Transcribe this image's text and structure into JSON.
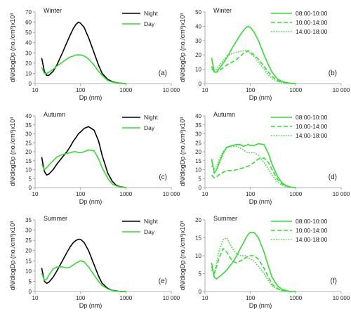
{
  "colors": {
    "night": "#000000",
    "day": "#33dd33",
    "green": "#33dd33",
    "axis": "#9a9a9a",
    "text": "#222222"
  },
  "x_axis_label": "Dp (nm)",
  "y_axis_label": "dN/dlogDp (no./cm³)x10³",
  "x_ticks": [
    10,
    100,
    1000,
    10000
  ],
  "x_tick_labels": [
    "10",
    "100",
    "1000",
    "10 000"
  ],
  "chart_data": [
    {
      "type": "line",
      "panel_label": "(a)",
      "title": "Winter",
      "xlabel": "Dp (nm)",
      "ylabel": "dN/dlogDp (no./cm³)x10³",
      "xscale": "log",
      "xlim": [
        10,
        10000
      ],
      "ylim": [
        0,
        70
      ],
      "yticks": [
        0,
        10,
        20,
        30,
        40,
        50,
        60,
        70
      ],
      "legend": "top-right",
      "x": [
        14,
        16,
        18,
        20,
        25,
        30,
        40,
        50,
        60,
        70,
        80,
        90,
        100,
        120,
        150,
        200,
        250,
        300,
        400,
        500,
        600,
        700,
        800,
        1000
      ],
      "series": [
        {
          "name": "Night",
          "style": "solid",
          "color": "#000000",
          "values": [
            25,
            12,
            8,
            8,
            12,
            18,
            30,
            40,
            48,
            54,
            58,
            60,
            59,
            55,
            45,
            30,
            18,
            10,
            4,
            2,
            1,
            0.5,
            0.3,
            0
          ]
        },
        {
          "name": "Day",
          "style": "solid",
          "color": "#33dd33",
          "values": [
            16,
            10,
            10,
            11,
            14,
            17,
            21,
            24,
            26,
            27,
            28,
            28,
            28,
            27,
            24,
            18,
            12,
            8,
            3,
            1.5,
            0.8,
            0.4,
            0.2,
            0
          ]
        }
      ]
    },
    {
      "type": "line",
      "panel_label": "(b)",
      "title": "Winter",
      "xlabel": "Dp (nm)",
      "ylabel": "dN/dlogDp (no./cm³)x10³",
      "xscale": "log",
      "xlim": [
        10,
        10000
      ],
      "ylim": [
        0,
        50
      ],
      "yticks": [
        0,
        10,
        20,
        30,
        40,
        50
      ],
      "legend": "top-right",
      "x": [
        14,
        16,
        18,
        20,
        25,
        30,
        40,
        50,
        60,
        70,
        80,
        90,
        100,
        120,
        150,
        200,
        250,
        300,
        400,
        500,
        600,
        700,
        800,
        1000
      ],
      "series": [
        {
          "name": "08:00-10:00",
          "style": "solid",
          "color": "#33dd33",
          "values": [
            18,
            8,
            8,
            10,
            14,
            18,
            25,
            30,
            34,
            37,
            39,
            40,
            39,
            36,
            30,
            20,
            13,
            8,
            3,
            1.5,
            0.8,
            0.4,
            0.2,
            0
          ]
        },
        {
          "name": "10:00-14:00",
          "style": "dashed",
          "color": "#33dd33",
          "values": [
            12,
            8,
            8,
            9,
            11,
            13,
            15,
            17,
            19,
            21,
            22,
            23,
            22,
            20,
            17,
            12,
            8,
            5,
            2,
            1,
            0.5,
            0.3,
            0.1,
            0
          ]
        },
        {
          "name": "14:00-18:00",
          "style": "dotted",
          "color": "#33dd33",
          "values": [
            10,
            9,
            10,
            12,
            16,
            19,
            21,
            22,
            22.5,
            23,
            23,
            22,
            21,
            19,
            15,
            10,
            6,
            3.5,
            1.5,
            0.7,
            0.4,
            0.2,
            0.1,
            0
          ]
        }
      ]
    },
    {
      "type": "line",
      "panel_label": "(c)",
      "title": "Autumn",
      "xlabel": "Dp (nm)",
      "ylabel": "dN/dlogDp (no./cm³)x10³",
      "xscale": "log",
      "xlim": [
        10,
        10000
      ],
      "ylim": [
        0,
        40
      ],
      "yticks": [
        0,
        5,
        10,
        15,
        20,
        25,
        30,
        35,
        40
      ],
      "legend": "top-right",
      "x": [
        14,
        16,
        18,
        20,
        25,
        30,
        40,
        50,
        60,
        70,
        80,
        90,
        100,
        120,
        150,
        200,
        250,
        300,
        400,
        500,
        600,
        700,
        800,
        1000
      ],
      "series": [
        {
          "name": "Night",
          "style": "solid",
          "color": "#000000",
          "values": [
            17,
            9,
            7,
            7.5,
            10,
            13,
            17,
            20,
            23,
            26,
            28,
            30,
            31,
            33,
            34,
            32,
            26,
            18,
            8,
            3.5,
            1.5,
            0.7,
            0.3,
            0
          ]
        },
        {
          "name": "Day",
          "style": "solid",
          "color": "#33dd33",
          "values": [
            13,
            10,
            11,
            12.5,
            15,
            17,
            18.5,
            19,
            19.5,
            20,
            20,
            19.5,
            19.5,
            20,
            21,
            20.5,
            16,
            11,
            5,
            2,
            1,
            0.5,
            0.2,
            0
          ]
        }
      ]
    },
    {
      "type": "line",
      "panel_label": "(d)",
      "title": "Autumn",
      "xlabel": "Dp (nm)",
      "ylabel": "dN/dlogDp (no./cm³)x10³",
      "xscale": "log",
      "xlim": [
        10,
        10000
      ],
      "ylim": [
        0,
        40
      ],
      "yticks": [
        0,
        5,
        10,
        15,
        20,
        25,
        30,
        35,
        40
      ],
      "legend": "top-right",
      "x": [
        14,
        16,
        18,
        20,
        25,
        30,
        40,
        50,
        60,
        70,
        80,
        90,
        100,
        120,
        150,
        200,
        250,
        300,
        400,
        500,
        600,
        700,
        800,
        1000
      ],
      "series": [
        {
          "name": "08:00-10:00",
          "style": "solid",
          "color": "#33dd33",
          "values": [
            16,
            8,
            10,
            13,
            19,
            22.5,
            23.5,
            24,
            24,
            23,
            23.5,
            24,
            23.5,
            23.5,
            24.5,
            24,
            19,
            13,
            6,
            2.5,
            1.2,
            0.5,
            0.2,
            0
          ]
        },
        {
          "name": "10:00-14:00",
          "style": "dashed",
          "color": "#33dd33",
          "values": [
            7,
            5.5,
            6,
            7,
            8.5,
            9.5,
            9.5,
            10,
            10.5,
            11,
            11.5,
            12,
            12.5,
            14,
            16,
            16.5,
            14,
            10,
            4.5,
            2,
            1,
            0.4,
            0.2,
            0
          ]
        },
        {
          "name": "14:00-18:00",
          "style": "dotted",
          "color": "#33dd33",
          "values": [
            12,
            10,
            12,
            15,
            20,
            22.5,
            23,
            23,
            22,
            21,
            20,
            19.5,
            19.5,
            19.5,
            18,
            14,
            10,
            7,
            3,
            1.3,
            0.6,
            0.3,
            0.1,
            0
          ]
        }
      ]
    },
    {
      "type": "line",
      "panel_label": "(e)",
      "title": "Summer",
      "xlabel": "Dp (nm)",
      "ylabel": "dN/dlogDp (no./cm³)x10³",
      "xscale": "log",
      "xlim": [
        10,
        10000
      ],
      "ylim": [
        0,
        35
      ],
      "yticks": [
        0,
        5,
        10,
        15,
        20,
        25,
        30,
        35
      ],
      "legend": "top-right",
      "x": [
        14,
        16,
        18,
        20,
        25,
        30,
        40,
        50,
        60,
        70,
        80,
        90,
        100,
        120,
        150,
        200,
        250,
        300,
        400,
        500,
        600,
        700,
        800,
        1000
      ],
      "series": [
        {
          "name": "Night",
          "style": "solid",
          "color": "#000000",
          "values": [
            11.5,
            5,
            4,
            4.5,
            7,
            10,
            15,
            19,
            22,
            24,
            25,
            25.5,
            25.5,
            24,
            20,
            13,
            7.5,
            4,
            1.5,
            0.6,
            0.3,
            0.1,
            0,
            0
          ]
        },
        {
          "name": "Day",
          "style": "solid",
          "color": "#33dd33",
          "values": [
            9,
            5.5,
            6,
            8,
            11,
            12,
            12,
            11.5,
            12,
            13,
            14,
            14.5,
            15,
            14.5,
            12,
            8,
            5,
            3,
            1.2,
            0.5,
            0.2,
            0.1,
            0,
            0
          ]
        }
      ]
    },
    {
      "type": "line",
      "panel_label": "(f)",
      "title": "Summer",
      "xlabel": "Dp (nm)",
      "ylabel": "dN/dlogDp (no./cm³)x10³",
      "xscale": "log",
      "xlim": [
        10,
        10000
      ],
      "ylim": [
        0,
        20
      ],
      "yticks": [
        0,
        5,
        10,
        15,
        20
      ],
      "legend": "top-right",
      "x": [
        14,
        16,
        18,
        20,
        25,
        30,
        40,
        50,
        60,
        70,
        80,
        90,
        100,
        120,
        150,
        200,
        250,
        300,
        400,
        500,
        600,
        700,
        800,
        1000
      ],
      "series": [
        {
          "name": "08:00-10:00",
          "style": "solid",
          "color": "#33dd33",
          "values": [
            8,
            4,
            3.5,
            4,
            5,
            6,
            8,
            10,
            12,
            13.5,
            15,
            16,
            16.5,
            16.5,
            15,
            11,
            7,
            4,
            1.5,
            0.6,
            0.3,
            0.1,
            0,
            0
          ]
        },
        {
          "name": "10:00-14:00",
          "style": "dashed",
          "color": "#33dd33",
          "values": [
            7,
            5,
            7,
            9,
            12,
            11,
            8.5,
            8,
            8.5,
            9,
            9.5,
            10,
            10,
            10,
            9,
            6.5,
            4,
            2,
            0.8,
            0.3,
            0.1,
            0,
            0,
            0
          ]
        },
        {
          "name": "14:00-18:00",
          "style": "dotted",
          "color": "#33dd33",
          "values": [
            6,
            5,
            8,
            11,
            14.5,
            15,
            12,
            10.5,
            10,
            10,
            10,
            9.5,
            9,
            8.5,
            7,
            5,
            3,
            1.5,
            0.6,
            0.2,
            0.1,
            0,
            0,
            0
          ]
        }
      ]
    }
  ]
}
